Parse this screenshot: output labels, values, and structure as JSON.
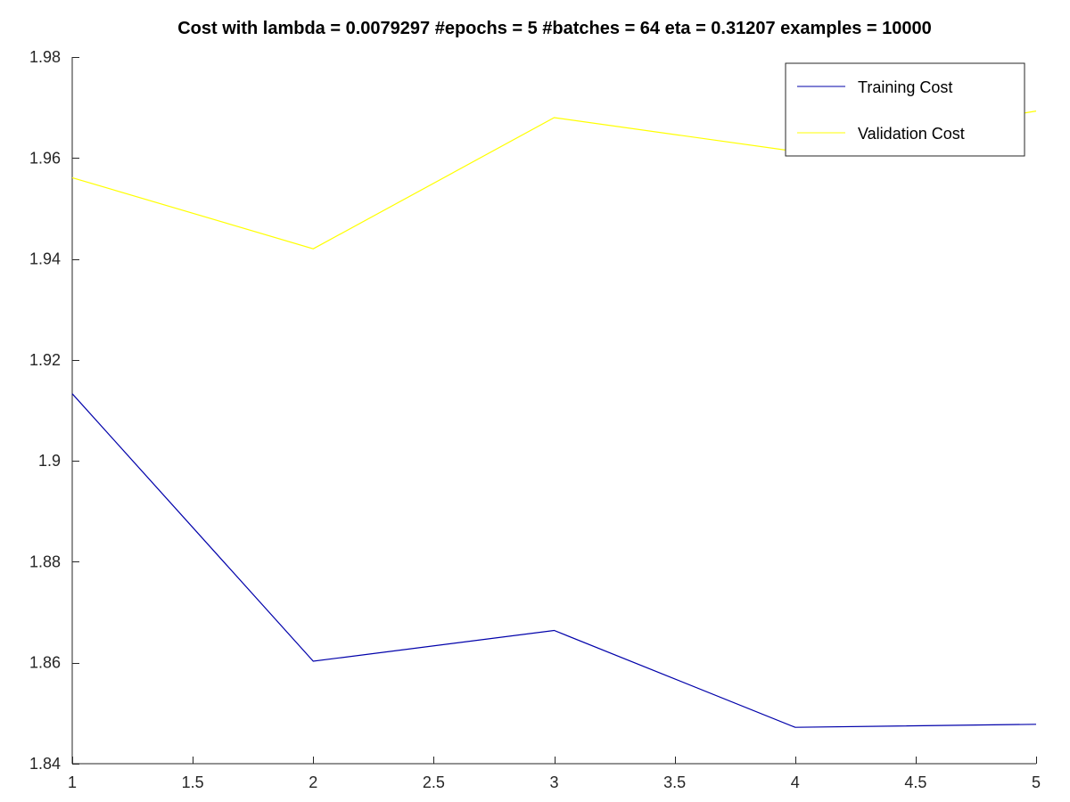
{
  "chart_data": {
    "type": "line",
    "title": "Cost with lambda = 0.0079297 #epochs = 5 #batches = 64 eta = 0.31207 examples = 10000",
    "xlabel": "",
    "ylabel": "",
    "xlim": [
      1,
      5
    ],
    "ylim": [
      1.84,
      1.98
    ],
    "xticks": [
      1,
      1.5,
      2,
      2.5,
      3,
      3.5,
      4,
      4.5,
      5
    ],
    "xtick_labels": [
      "1",
      "1.5",
      "2",
      "2.5",
      "3",
      "3.5",
      "4",
      "4.5",
      "5"
    ],
    "yticks": [
      1.84,
      1.86,
      1.88,
      1.9,
      1.92,
      1.94,
      1.96,
      1.98
    ],
    "ytick_labels": [
      "1.84",
      "1.86",
      "1.88",
      "1.9",
      "1.92",
      "1.94",
      "1.96",
      "1.98"
    ],
    "grid": false,
    "legend_position": "top-right",
    "x": [
      1,
      2,
      3,
      4,
      5
    ],
    "series": [
      {
        "name": "Training Cost",
        "color": "#0000aa",
        "values": [
          1.9133,
          1.8603,
          1.8664,
          1.8472,
          1.8478
        ]
      },
      {
        "name": "Validation Cost",
        "color": "#ffff00",
        "values": [
          1.9561,
          1.942,
          1.968,
          1.9613,
          1.9693
        ]
      }
    ]
  }
}
